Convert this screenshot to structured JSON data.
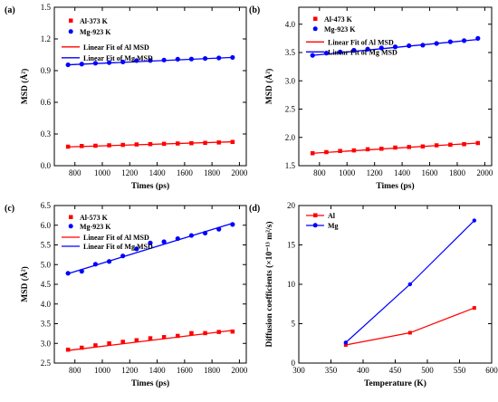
{
  "colors": {
    "red": "#ff0000",
    "blue": "#0000ff",
    "axis": "#000000"
  },
  "chart_data": [
    {
      "panel": "(a)",
      "type": "scatter",
      "xlabel": "Times (ps)",
      "ylabel": "MSD (Å²)",
      "xlim": [
        650,
        2050
      ],
      "ylim": [
        0.0,
        1.5
      ],
      "xticks": [
        800,
        1000,
        1200,
        1400,
        1600,
        1800,
        2000
      ],
      "yticks": [
        0.0,
        0.3,
        0.6,
        0.9,
        1.2,
        1.5
      ],
      "ytick_labels": [
        "0.0",
        "0.3",
        "0.6",
        "0.9",
        "1.2",
        "1.5"
      ],
      "x": [
        750,
        850,
        950,
        1050,
        1150,
        1250,
        1350,
        1450,
        1550,
        1650,
        1750,
        1850,
        1950
      ],
      "series": [
        {
          "name": "Al-373 K",
          "marker": "square",
          "color": "#ff0000",
          "values": [
            0.18,
            0.186,
            0.189,
            0.193,
            0.197,
            0.201,
            0.204,
            0.207,
            0.21,
            0.213,
            0.216,
            0.22,
            0.225
          ]
        },
        {
          "name": "Mg-923 K",
          "marker": "circle",
          "color": "#0000ff",
          "values": [
            0.955,
            0.962,
            0.97,
            0.976,
            0.982,
            0.995,
            0.996,
            1.0,
            1.008,
            1.01,
            1.015,
            1.02,
            1.025
          ]
        }
      ],
      "fits": [
        {
          "name": "Linear Fit of Al MSD",
          "color": "#ff0000",
          "y": [
            0.178,
            0.226
          ]
        },
        {
          "name": "Linear Fit of Mg MSD",
          "color": "#0000ff",
          "y": [
            0.955,
            1.025
          ]
        }
      ]
    },
    {
      "panel": "(b)",
      "type": "scatter",
      "xlabel": "Times (ps)",
      "ylabel": "MSD (Å²)",
      "xlim": [
        650,
        2050
      ],
      "ylim": [
        1.5,
        4.3
      ],
      "xticks": [
        800,
        1000,
        1200,
        1400,
        1600,
        1800,
        2000
      ],
      "yticks": [
        1.5,
        2.0,
        2.5,
        3.0,
        3.5,
        4.0
      ],
      "ytick_labels": [
        "1.5",
        "2.0",
        "2.5",
        "3.0",
        "3.5",
        "4.0"
      ],
      "x": [
        750,
        850,
        950,
        1050,
        1150,
        1250,
        1350,
        1450,
        1550,
        1650,
        1750,
        1850,
        1950
      ],
      "series": [
        {
          "name": "Al-473 K",
          "marker": "square",
          "color": "#ff0000",
          "values": [
            1.72,
            1.74,
            1.76,
            1.77,
            1.79,
            1.8,
            1.82,
            1.83,
            1.84,
            1.86,
            1.87,
            1.88,
            1.9
          ]
        },
        {
          "name": "Mg-923 K",
          "marker": "circle",
          "color": "#0000ff",
          "values": [
            3.45,
            3.49,
            3.51,
            3.54,
            3.56,
            3.58,
            3.6,
            3.62,
            3.63,
            3.66,
            3.69,
            3.71,
            3.75
          ]
        }
      ],
      "fits": [
        {
          "name": "Linear Fit of Al MSD",
          "color": "#ff0000",
          "y": [
            1.72,
            1.9
          ]
        },
        {
          "name": "Linear Fit of Mg MSD",
          "color": "#0000ff",
          "y": [
            3.45,
            3.73
          ]
        }
      ]
    },
    {
      "panel": "(c)",
      "type": "scatter",
      "xlabel": "Times (ps)",
      "ylabel": "MSD (Å²)",
      "xlim": [
        650,
        2050
      ],
      "ylim": [
        2.5,
        6.5
      ],
      "xticks": [
        800,
        1000,
        1200,
        1400,
        1600,
        1800,
        2000
      ],
      "yticks": [
        2.5,
        3.0,
        3.5,
        4.0,
        4.5,
        5.0,
        5.5,
        6.0,
        6.5
      ],
      "ytick_labels": [
        "2.5",
        "3.0",
        "3.5",
        "4.0",
        "4.5",
        "5.0",
        "5.5",
        "6.0",
        "6.5"
      ],
      "x": [
        750,
        850,
        950,
        1050,
        1150,
        1250,
        1350,
        1450,
        1550,
        1650,
        1750,
        1850,
        1950
      ],
      "series": [
        {
          "name": "Al-573 K",
          "marker": "square",
          "color": "#ff0000",
          "values": [
            2.84,
            2.89,
            2.95,
            3.0,
            3.04,
            3.08,
            3.13,
            3.16,
            3.19,
            3.26,
            3.26,
            3.29,
            3.3
          ]
        },
        {
          "name": "Mg-923 K",
          "marker": "circle",
          "color": "#0000ff",
          "values": [
            4.78,
            4.83,
            5.01,
            5.08,
            5.22,
            5.4,
            5.55,
            5.58,
            5.66,
            5.74,
            5.8,
            5.9,
            6.02
          ]
        }
      ],
      "fits": [
        {
          "name": "Linear Fit of Al MSD",
          "color": "#ff0000",
          "y": [
            2.82,
            3.33
          ]
        },
        {
          "name": "Linear Fit of Mg MSD",
          "color": "#0000ff",
          "y": [
            4.77,
            6.05
          ]
        }
      ]
    },
    {
      "panel": "(d)",
      "type": "line",
      "xlabel": "Temperature (K)",
      "ylabel": "Diffusion coefficients (×10⁻¹³ m²/s)",
      "xlim": [
        300,
        600
      ],
      "ylim": [
        0,
        20
      ],
      "xticks": [
        300,
        350,
        400,
        450,
        500,
        550,
        600
      ],
      "yticks": [
        0,
        5,
        10,
        15,
        20
      ],
      "ytick_labels": [
        "0",
        "5",
        "10",
        "15",
        "20"
      ],
      "x": [
        373,
        473,
        573
      ],
      "series": [
        {
          "name": "Al",
          "marker": "square",
          "color": "#ff0000",
          "values": [
            2.3,
            3.85,
            7.0
          ]
        },
        {
          "name": "Mg",
          "marker": "circle",
          "color": "#0000ff",
          "values": [
            2.6,
            10.0,
            18.1
          ]
        }
      ]
    }
  ]
}
